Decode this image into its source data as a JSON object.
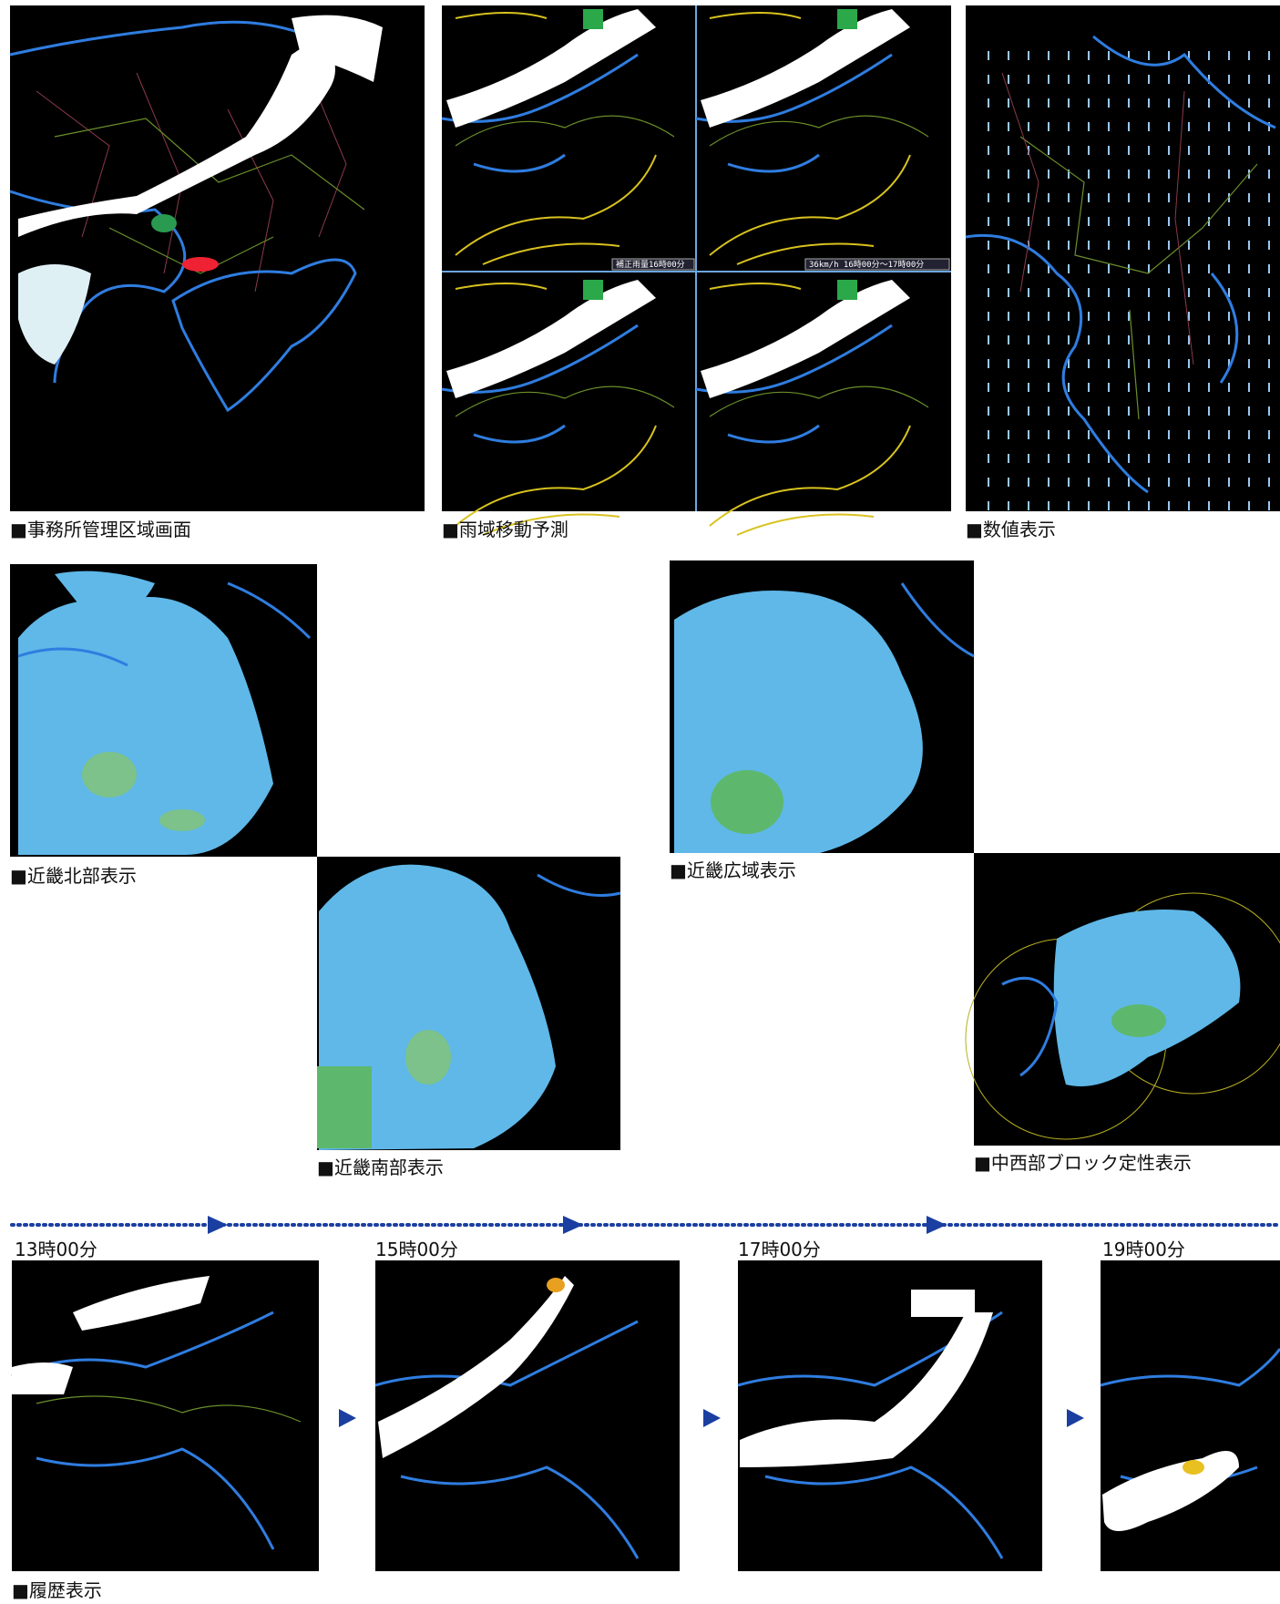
{
  "panels": [
    {
      "caption": "■事務所管理区域画面"
    },
    {
      "caption": "■雨域移動予測",
      "labels": [
        "補正雨量16時00分",
        "36km/h 16時00分～17時00分"
      ]
    },
    {
      "caption": "■数値表示"
    },
    {
      "caption": "■近畿北部表示"
    },
    {
      "caption": "■近畿南部表示"
    },
    {
      "caption": "■近畿広域表示"
    },
    {
      "caption": "■中西部ブロック定性表示"
    }
  ],
  "history": {
    "caption": "■履歴表示",
    "times": [
      "13時00分",
      "15時00分",
      "17時00分",
      "19時00分"
    ]
  }
}
